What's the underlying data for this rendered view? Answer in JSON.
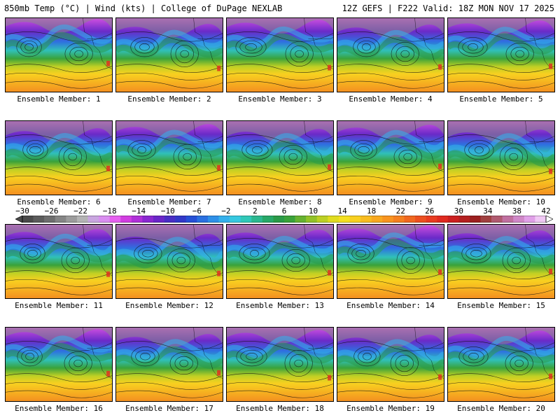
{
  "header": {
    "left": "850mb Temp (°C) | Wind (kts) | College of DuPage NEXLAB",
    "right": "12Z GEFS | F222 Valid: 18Z MON NOV 17 2025"
  },
  "members": [
    "Ensemble Member: 1",
    "Ensemble Member: 2",
    "Ensemble Member: 3",
    "Ensemble Member: 4",
    "Ensemble Member: 5",
    "Ensemble Member: 6",
    "Ensemble Member: 7",
    "Ensemble Member: 8",
    "Ensemble Member: 9",
    "Ensemble Member: 10",
    "Ensemble Member: 11",
    "Ensemble Member: 12",
    "Ensemble Member: 13",
    "Ensemble Member: 14",
    "Ensemble Member: 15",
    "Ensemble Member: 16",
    "Ensemble Member: 17",
    "Ensemble Member: 18",
    "Ensemble Member: 19",
    "Ensemble Member: 20"
  ],
  "colorbar": {
    "ticks": [
      "−30",
      "−26",
      "−22",
      "−18",
      "−14",
      "−10",
      "−6",
      "−2",
      "2",
      "6",
      "10",
      "14",
      "18",
      "22",
      "26",
      "30",
      "34",
      "38",
      "42"
    ],
    "colors": [
      "#4a4a4a",
      "#5c5c5c",
      "#6e6e6e",
      "#858585",
      "#9c9c9c",
      "#b4b4b4",
      "#c9a6e0",
      "#d98ef0",
      "#e660f0",
      "#d13de0",
      "#b030d8",
      "#8a28d0",
      "#6a26c8",
      "#4a2ec4",
      "#3238c8",
      "#2650d6",
      "#2a70e0",
      "#2e90e8",
      "#34b0ec",
      "#36c8e0",
      "#30c8b8",
      "#2cb890",
      "#28a868",
      "#2a9a48",
      "#3aa23a",
      "#66b230",
      "#92c228",
      "#bcd024",
      "#e0dc20",
      "#f4e020",
      "#f8d020",
      "#f8bc20",
      "#f8a820",
      "#f89420",
      "#f48020",
      "#f06820",
      "#ec5020",
      "#e83c20",
      "#e02a20",
      "#cc2020",
      "#b42020",
      "#9c2020",
      "#a04040",
      "#b05a70",
      "#c070a0",
      "#d088c8",
      "#e0a0e8",
      "#f0c8f4"
    ]
  }
}
